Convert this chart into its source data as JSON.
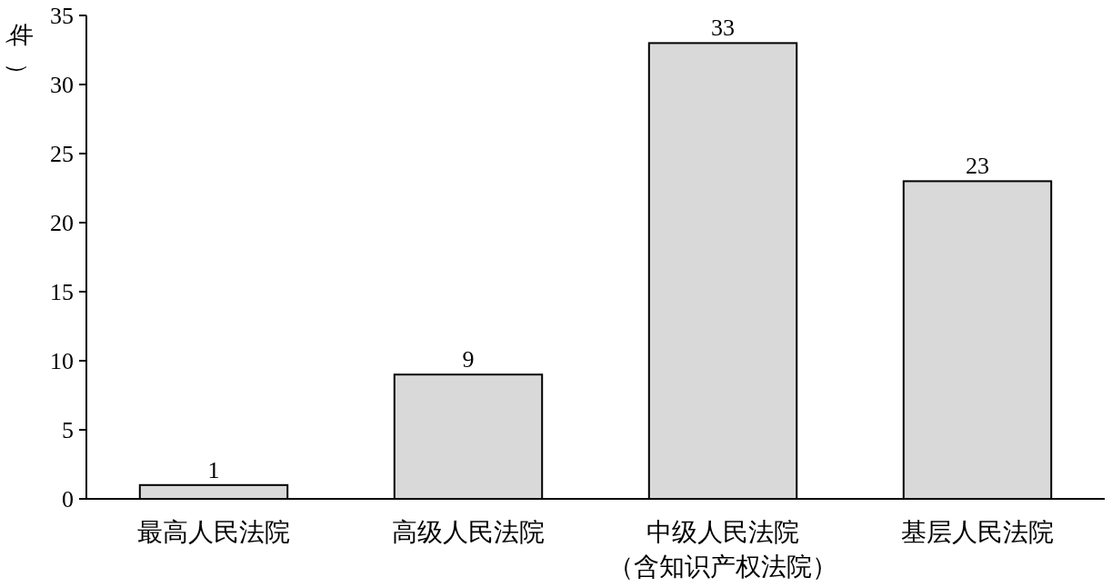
{
  "chart_data": {
    "type": "bar",
    "ylabel": "（件）",
    "categories": [
      "最高人民法院",
      "高级人民法院",
      "中级人民法院（含知识产权法院）",
      "基层人民法院"
    ],
    "values": [
      1,
      9,
      33,
      23
    ],
    "color": "#d9d9d9",
    "ylim": [
      0,
      35
    ],
    "yticks": [
      0,
      5,
      10,
      15,
      20,
      25,
      30,
      35
    ],
    "data_labels": true,
    "grid": false
  }
}
